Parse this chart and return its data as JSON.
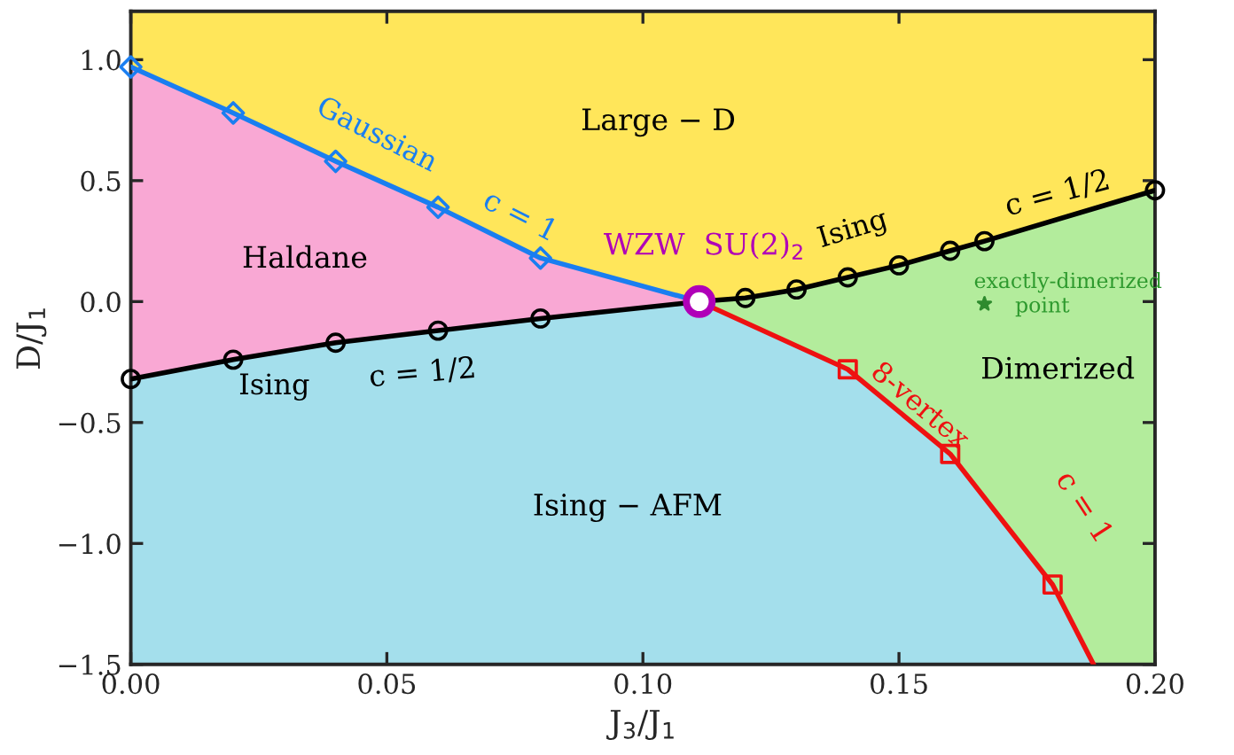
{
  "chart_data": {
    "type": "line",
    "xlabel": "J$_{3}$/J$_{1}$",
    "ylabel": "D/J$_{1}$",
    "xlim": [
      0,
      0.2
    ],
    "ylim": [
      -1.5,
      1.2
    ],
    "xticks": [
      {
        "value": 0,
        "label": "0.00"
      },
      {
        "value": 0.05,
        "label": "0.05"
      },
      {
        "value": 0.1,
        "label": "0.10"
      },
      {
        "value": 0.15,
        "label": "0.15"
      },
      {
        "value": 0.2,
        "label": "0.20"
      }
    ],
    "yticks": [
      {
        "value": -1.5,
        "label": "−1.5"
      },
      {
        "value": -1.0,
        "label": "−1.0"
      },
      {
        "value": -0.5,
        "label": "−0.5"
      },
      {
        "value": 0,
        "label": "0.0"
      },
      {
        "value": 0.5,
        "label": "0.5"
      },
      {
        "value": 1.0,
        "label": "1.0"
      }
    ],
    "grid": false,
    "legend": false,
    "series": [
      {
        "marker": "none",
        "color": "#1a7ef0",
        "x": [
          0,
          0.02,
          0.04,
          0.06,
          0.08,
          0.111
        ],
        "values": [
          0.97,
          0.78,
          0.58,
          0.39,
          0.18,
          0.0
        ]
      },
      {
        "marker": "none",
        "color": "#000000",
        "x": [
          0,
          0.02,
          0.04,
          0.06,
          0.08,
          0.111
        ],
        "values": [
          -0.32,
          -0.24,
          -0.17,
          -0.12,
          -0.07,
          0.0
        ]
      },
      {
        "marker": "none",
        "color": "#000000",
        "x": [
          0.111,
          0.12,
          0.13,
          0.14,
          0.15,
          0.16,
          0.1667,
          0.2
        ],
        "values": [
          0.0,
          0.015,
          0.05,
          0.1,
          0.15,
          0.21,
          0.25,
          0.46
        ]
      },
      {
        "marker": "none",
        "color": "#ee1111",
        "x": [
          0.111,
          0.14,
          0.16,
          0.18,
          0.188
        ],
        "values": [
          0.0,
          -0.28,
          -0.63,
          -1.17,
          -1.5
        ]
      },
      {
        "type": "scatter",
        "marker": "diamond",
        "color": "#1a7ef0",
        "x": [
          0,
          0.02,
          0.04,
          0.06,
          0.08
        ],
        "values": [
          0.97,
          0.78,
          0.58,
          0.39,
          0.18
        ]
      },
      {
        "type": "scatter",
        "marker": "circle",
        "color": "#000000",
        "x": [
          0,
          0.02,
          0.04,
          0.06,
          0.08
        ],
        "values": [
          -0.32,
          -0.24,
          -0.17,
          -0.12,
          -0.07
        ]
      },
      {
        "type": "scatter",
        "marker": "circle",
        "color": "#000000",
        "x": [
          0.12,
          0.13,
          0.14,
          0.15,
          0.16,
          0.1667,
          0.2
        ],
        "values": [
          0.015,
          0.05,
          0.1,
          0.15,
          0.21,
          0.25,
          0.46
        ]
      },
      {
        "type": "scatter",
        "marker": "square",
        "color": "#ee1111",
        "x": [
          0.14,
          0.16,
          0.18
        ],
        "values": [
          -0.28,
          -0.63,
          -1.17
        ]
      },
      {
        "type": "scatter",
        "marker": "circle",
        "color": "#b000b8",
        "x": [
          0.111
        ],
        "values": [
          0.0
        ]
      },
      {
        "type": "scatter",
        "marker": "star",
        "color": "#2e8b2e",
        "x": [
          0.1667
        ],
        "values": [
          -0.01
        ]
      }
    ],
    "annotations": [
      "Large − D",
      "Haldane",
      "Ising − AFM",
      "Dimerized",
      "Gaussian",
      "c = 1",
      "WZW  SU(2)$_{2}$",
      "Ising",
      "c = 1/2",
      "Ising",
      "c = 1/2",
      "exactly-dimerized",
      "point",
      "8-vertex",
      "c = 1"
    ]
  }
}
